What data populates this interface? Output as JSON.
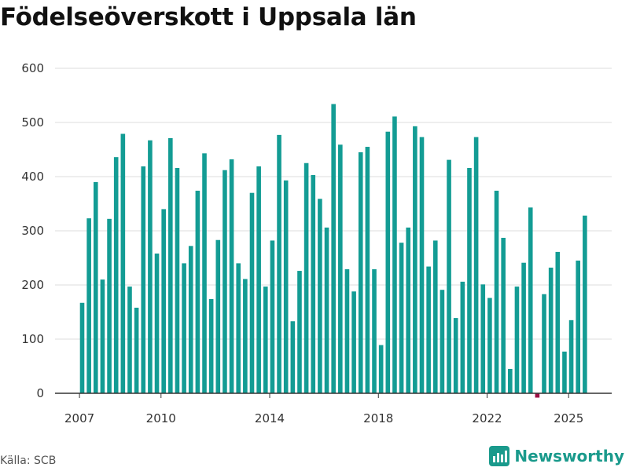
{
  "colors": {
    "positive": "#139c94",
    "negative": "#9c0f44",
    "grid": "#dddddd",
    "axis": "#333333"
  },
  "source": "Källa: SCB",
  "brand": {
    "name": "Newsworthy",
    "logo_icon": "newsworthy-logo-icon"
  },
  "chart_data": {
    "type": "bar",
    "title": "Födelseöverskott i Uppsala län",
    "xlabel": "",
    "ylabel": "",
    "ylim": [
      0,
      600
    ],
    "yticks": [
      0,
      100,
      200,
      300,
      400,
      500,
      600
    ],
    "xticks": [
      {
        "label": "2007",
        "index": 0
      },
      {
        "label": "2010",
        "index": 12
      },
      {
        "label": "2014",
        "index": 28
      },
      {
        "label": "2018",
        "index": 44
      },
      {
        "label": "2022",
        "index": 60
      },
      {
        "label": "2025",
        "index": 72
      }
    ],
    "categories": [
      "2007 Q1",
      "2007 Q2",
      "2007 Q3",
      "2007 Q4",
      "2008 Q1",
      "2008 Q2",
      "2008 Q3",
      "2008 Q4",
      "2009 Q1",
      "2009 Q2",
      "2009 Q3",
      "2009 Q4",
      "2010 Q1",
      "2010 Q2",
      "2010 Q3",
      "2010 Q4",
      "2011 Q1",
      "2011 Q2",
      "2011 Q3",
      "2011 Q4",
      "2012 Q1",
      "2012 Q2",
      "2012 Q3",
      "2012 Q4",
      "2013 Q1",
      "2013 Q2",
      "2013 Q3",
      "2013 Q4",
      "2014 Q1",
      "2014 Q2",
      "2014 Q3",
      "2014 Q4",
      "2015 Q1",
      "2015 Q2",
      "2015 Q3",
      "2015 Q4",
      "2016 Q1",
      "2016 Q2",
      "2016 Q3",
      "2016 Q4",
      "2017 Q1",
      "2017 Q2",
      "2017 Q3",
      "2017 Q4",
      "2018 Q1",
      "2018 Q2",
      "2018 Q3",
      "2018 Q4",
      "2019 Q1",
      "2019 Q2",
      "2019 Q3",
      "2019 Q4",
      "2020 Q1",
      "2020 Q2",
      "2020 Q3",
      "2020 Q4",
      "2021 Q1",
      "2021 Q2",
      "2021 Q3",
      "2021 Q4",
      "2022 Q1",
      "2022 Q2",
      "2022 Q3",
      "2022 Q4",
      "2023 Q1",
      "2023 Q2",
      "2023 Q3",
      "2023 Q4",
      "2024 Q1",
      "2024 Q2",
      "2024 Q3",
      "2024 Q4",
      "2025 Q1",
      "2025 Q2",
      "2025 Q3",
      "2025 Q4"
    ],
    "series": [
      {
        "name": "Födelseöverskott",
        "values": [
          167,
          323,
          390,
          210,
          322,
          436,
          479,
          197,
          158,
          419,
          467,
          258,
          340,
          471,
          416,
          240,
          272,
          374,
          443,
          174,
          283,
          412,
          432,
          240,
          211,
          370,
          419,
          197,
          282,
          477,
          393,
          133,
          226,
          425,
          403,
          359,
          306,
          534,
          459,
          229,
          188,
          445,
          455,
          229,
          89,
          483,
          511,
          278,
          306,
          493,
          473,
          234,
          282,
          191,
          431,
          139,
          206,
          416,
          473,
          201,
          176,
          374,
          287,
          45,
          197,
          241,
          343,
          -8,
          183,
          232,
          261,
          77,
          135,
          245,
          328,
          null
        ]
      }
    ]
  }
}
